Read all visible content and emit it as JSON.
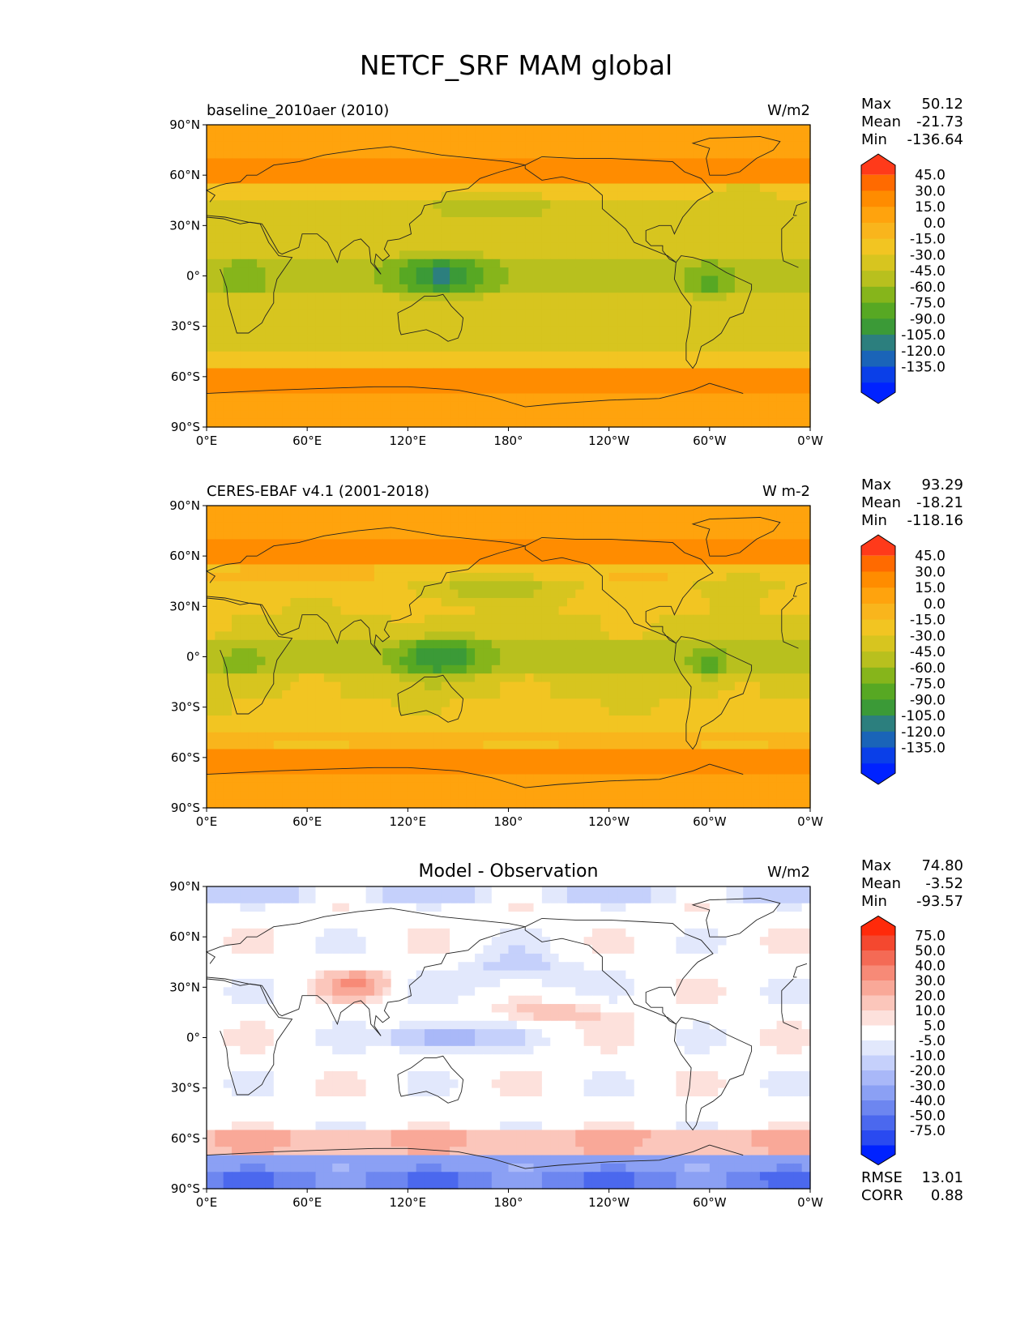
{
  "title": "NETCF_SRF MAM global",
  "chart_data": [
    {
      "type": "heatmap",
      "kind": "map",
      "title": "baseline_2010aer (2010)",
      "units": "W/m2",
      "stats": [
        {
          "label": "Max",
          "value": "50.12"
        },
        {
          "label": "Mean",
          "value": "-21.73"
        },
        {
          "label": "Min",
          "value": "-136.64"
        }
      ],
      "x_ticks": [
        "0°E",
        "60°E",
        "120°E",
        "180°",
        "120°W",
        "60°W",
        "0°W"
      ],
      "y_ticks": [
        "90°N",
        "60°N",
        "30°N",
        "0°",
        "30°S",
        "60°S",
        "90°S"
      ],
      "xlim": [
        0,
        360
      ],
      "ylim": [
        -90,
        90
      ],
      "colorbar": {
        "extend": "both",
        "labels": [
          "45.0",
          "30.0",
          "15.0",
          "0.0",
          "-15.0",
          "-30.0",
          "-45.0",
          "-60.0",
          "-75.0",
          "-90.0",
          "-105.0",
          "-120.0",
          "-135.0"
        ],
        "colors": [
          "#ff3a1a",
          "#ff6a00",
          "#ff8c00",
          "#ffa30d",
          "#f9b51c",
          "#f2c522",
          "#d7c51f",
          "#b8c01e",
          "#86b51b",
          "#57a823",
          "#3b9a37",
          "#2c7f7e",
          "#1a64b8",
          "#0a3fe8",
          "#0022ff"
        ]
      }
    },
    {
      "type": "heatmap",
      "kind": "map",
      "title": "CERES-EBAF v4.1 (2001-2018)",
      "units": "W m-2",
      "stats": [
        {
          "label": "Max",
          "value": "93.29"
        },
        {
          "label": "Mean",
          "value": "-18.21"
        },
        {
          "label": "Min",
          "value": "-118.16"
        }
      ],
      "x_ticks": [
        "0°E",
        "60°E",
        "120°E",
        "180°",
        "120°W",
        "60°W",
        "0°W"
      ],
      "y_ticks": [
        "90°N",
        "60°N",
        "30°N",
        "0°",
        "30°S",
        "60°S",
        "90°S"
      ],
      "xlim": [
        0,
        360
      ],
      "ylim": [
        -90,
        90
      ],
      "colorbar": {
        "extend": "both",
        "labels": [
          "45.0",
          "30.0",
          "15.0",
          "0.0",
          "-15.0",
          "-30.0",
          "-45.0",
          "-60.0",
          "-75.0",
          "-90.0",
          "-105.0",
          "-120.0",
          "-135.0"
        ],
        "colors": [
          "#ff3a1a",
          "#ff6a00",
          "#ff8c00",
          "#ffa30d",
          "#f9b51c",
          "#f2c522",
          "#d7c51f",
          "#b8c01e",
          "#86b51b",
          "#57a823",
          "#3b9a37",
          "#2c7f7e",
          "#1a64b8",
          "#0a3fe8",
          "#0022ff"
        ]
      }
    },
    {
      "type": "heatmap",
      "kind": "map",
      "title": "Model - Observation",
      "units": "W/m2",
      "stats": [
        {
          "label": "Max",
          "value": "74.80"
        },
        {
          "label": "Mean",
          "value": "-3.52"
        },
        {
          "label": "Min",
          "value": "-93.57"
        }
      ],
      "extra_stats": [
        {
          "label": "RMSE",
          "value": "13.01"
        },
        {
          "label": "CORR",
          "value": "0.88"
        }
      ],
      "x_ticks": [
        "0°E",
        "60°E",
        "120°E",
        "180°",
        "120°W",
        "60°W",
        "0°W"
      ],
      "y_ticks": [
        "90°N",
        "60°N",
        "30°N",
        "0°",
        "30°S",
        "60°S",
        "90°S"
      ],
      "xlim": [
        0,
        360
      ],
      "ylim": [
        -90,
        90
      ],
      "colorbar": {
        "extend": "both",
        "labels": [
          "75.0",
          "50.0",
          "40.0",
          "30.0",
          "20.0",
          "10.0",
          "5.0",
          "-5.0",
          "-10.0",
          "-20.0",
          "-30.0",
          "-40.0",
          "-50.0",
          "-75.0"
        ],
        "colors": [
          "#ff2a0a",
          "#f4482f",
          "#f46a55",
          "#f78a77",
          "#f9a898",
          "#fbc6bb",
          "#fde1dc",
          "#ffffff",
          "#e2e8fc",
          "#c5d0fb",
          "#a9b8f8",
          "#8ba0f4",
          "#6d86f0",
          "#4b68ee",
          "#2a4af0",
          "#0022ff"
        ]
      }
    }
  ]
}
